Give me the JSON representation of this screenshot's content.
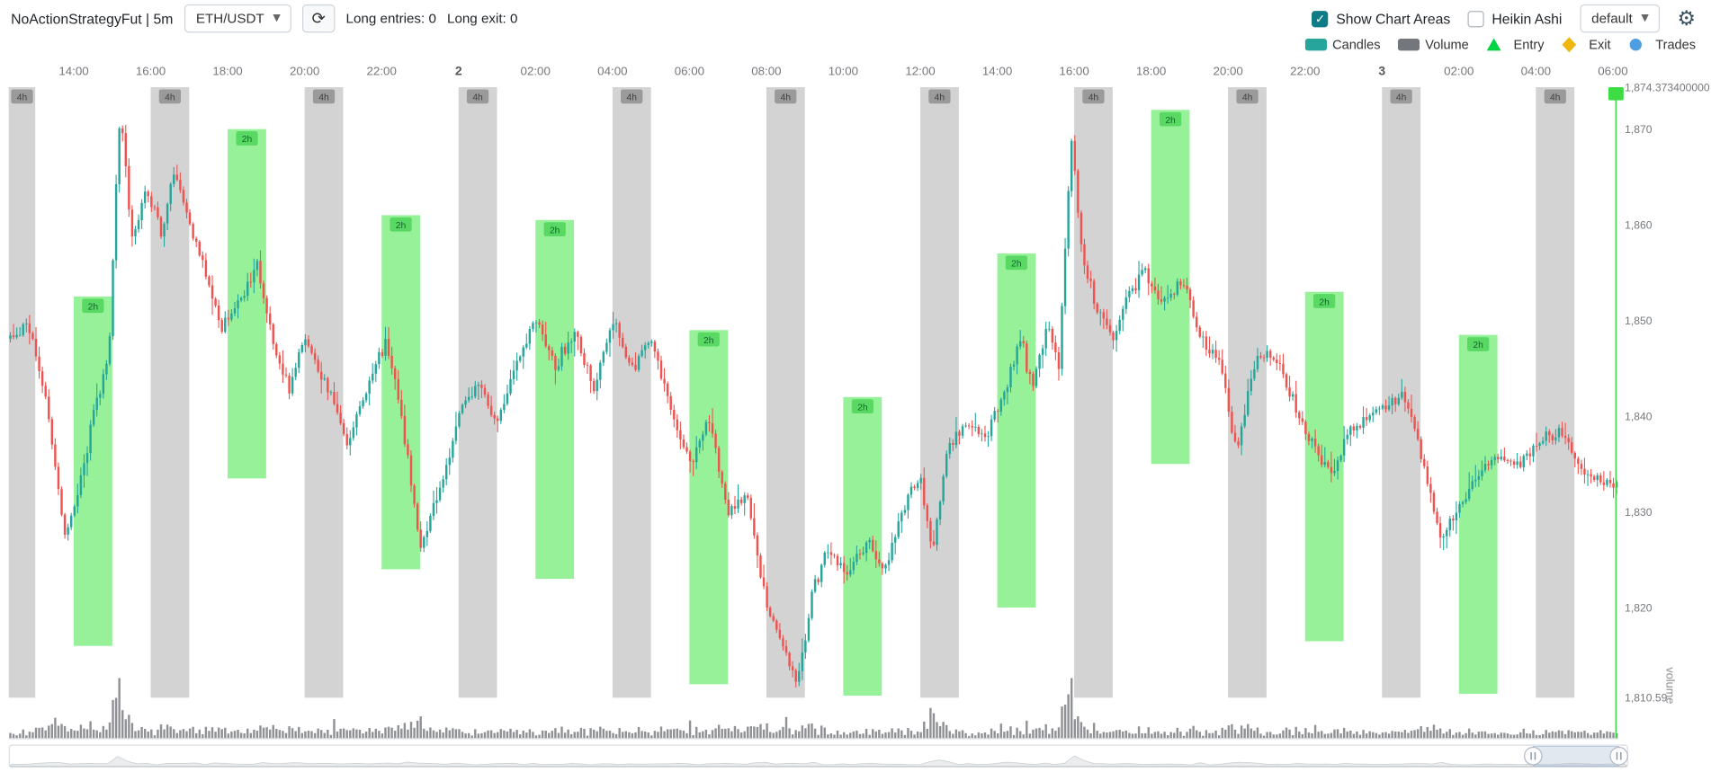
{
  "colors": {
    "accent_teal": "#0e7c86",
    "candle_up": "#26a69a",
    "candle_down": "#ef5350",
    "volume_bar": "#73767a",
    "area_4h": "#a8a8a8",
    "area_4h_chip_bg": "#8f8f8f",
    "area_4h_chip_text": "#3f3f3f",
    "area_2h": "#7dee80",
    "area_2h_chip_bg": "#52d65d",
    "area_2h_chip_text": "#11672a",
    "marker_green": "#3ddc45",
    "axis_text": "#75787c"
  },
  "header": {
    "title": "NoActionStrategyFut | 5m",
    "pair_select": {
      "value": "ETH/USDT"
    },
    "stats": {
      "long_entries": "Long entries: 0",
      "long_exit": "Long exit: 0"
    },
    "show_chart_areas": {
      "label": "Show Chart Areas",
      "checked": true
    },
    "heikin_ashi": {
      "label": "Heikin Ashi",
      "checked": false
    },
    "plot_config_select": {
      "value": "default"
    }
  },
  "legend": {
    "items": [
      {
        "label": "Candles",
        "shape": "rect",
        "color": "#26a69a"
      },
      {
        "label": "Volume",
        "shape": "rect",
        "color": "#73767a"
      },
      {
        "label": "Entry",
        "shape": "triangle",
        "color": "#00d443"
      },
      {
        "label": "Exit",
        "shape": "diamond",
        "color": "#eeb60f"
      },
      {
        "label": "Trades",
        "shape": "circle",
        "color": "#4f9fe0"
      }
    ]
  },
  "chart_data": {
    "type": "candlestick",
    "time_span_hours": 41.83,
    "price_min": 1810.59,
    "price_max": 1874.3734,
    "x_axis_labels": [
      {
        "t": 1.69,
        "label": "14:00"
      },
      {
        "t": 3.69,
        "label": "16:00"
      },
      {
        "t": 5.69,
        "label": "18:00"
      },
      {
        "t": 7.69,
        "label": "20:00"
      },
      {
        "t": 9.69,
        "label": "22:00"
      },
      {
        "t": 11.69,
        "label": "2",
        "bold": true
      },
      {
        "t": 13.69,
        "label": "02:00"
      },
      {
        "t": 15.69,
        "label": "04:00"
      },
      {
        "t": 17.69,
        "label": "06:00"
      },
      {
        "t": 19.69,
        "label": "08:00"
      },
      {
        "t": 21.69,
        "label": "10:00"
      },
      {
        "t": 23.69,
        "label": "12:00"
      },
      {
        "t": 25.69,
        "label": "14:00"
      },
      {
        "t": 27.69,
        "label": "16:00"
      },
      {
        "t": 29.69,
        "label": "18:00"
      },
      {
        "t": 31.69,
        "label": "20:00"
      },
      {
        "t": 33.69,
        "label": "22:00"
      },
      {
        "t": 35.69,
        "label": "3",
        "bold": true
      },
      {
        "t": 37.69,
        "label": "02:00"
      },
      {
        "t": 39.69,
        "label": "04:00"
      },
      {
        "t": 41.69,
        "label": "06:00"
      }
    ],
    "y_axis_labels": [
      {
        "price": 1874.3734,
        "label": "1,874.373400000"
      },
      {
        "price": 1870,
        "label": "1,870"
      },
      {
        "price": 1860,
        "label": "1,860"
      },
      {
        "price": 1850,
        "label": "1,850"
      },
      {
        "price": 1840,
        "label": "1,840"
      },
      {
        "price": 1830,
        "label": "1,830"
      },
      {
        "price": 1820,
        "label": "1,820"
      },
      {
        "price": 1810.59,
        "label": "1,810.59"
      }
    ],
    "volume_axis_name": "volume",
    "areas_4h": {
      "label": "4h",
      "width_hours": 1,
      "starts": [
        -0.31,
        3.69,
        7.69,
        11.69,
        15.69,
        19.69,
        23.69,
        27.69,
        31.69,
        35.69,
        39.69
      ]
    },
    "areas_2h": {
      "label": "2h",
      "width_hours": 1,
      "items": [
        {
          "start": 1.69,
          "min": 1816,
          "max": 1852.5
        },
        {
          "start": 5.69,
          "min": 1833.5,
          "max": 1870
        },
        {
          "start": 9.69,
          "min": 1824,
          "max": 1861
        },
        {
          "start": 13.69,
          "min": 1823,
          "max": 1860.5
        },
        {
          "start": 17.69,
          "min": 1812,
          "max": 1849
        },
        {
          "start": 21.69,
          "min": 1810.8,
          "max": 1842
        },
        {
          "start": 25.69,
          "min": 1820,
          "max": 1857
        },
        {
          "start": 29.69,
          "min": 1835,
          "max": 1872
        },
        {
          "start": 33.69,
          "min": 1816.5,
          "max": 1853
        },
        {
          "start": 37.69,
          "min": 1811,
          "max": 1848.5
        }
      ]
    },
    "price_keypoints": [
      [
        0,
        1848
      ],
      [
        0.5,
        1850
      ],
      [
        1,
        1841
      ],
      [
        1.45,
        1827
      ],
      [
        1.8,
        1832
      ],
      [
        2.2,
        1840
      ],
      [
        2.6,
        1847
      ],
      [
        2.9,
        1873
      ],
      [
        3.2,
        1858
      ],
      [
        3.6,
        1864
      ],
      [
        4,
        1859
      ],
      [
        4.3,
        1866
      ],
      [
        4.7,
        1860
      ],
      [
        5.1,
        1855
      ],
      [
        5.5,
        1849
      ],
      [
        6,
        1852
      ],
      [
        6.45,
        1856
      ],
      [
        6.9,
        1847
      ],
      [
        7.3,
        1843
      ],
      [
        7.7,
        1848
      ],
      [
        8.3,
        1843
      ],
      [
        8.8,
        1837
      ],
      [
        9.3,
        1843
      ],
      [
        9.8,
        1848
      ],
      [
        10.2,
        1840
      ],
      [
        10.7,
        1826
      ],
      [
        11.2,
        1832
      ],
      [
        11.7,
        1840
      ],
      [
        12.2,
        1844
      ],
      [
        12.7,
        1839
      ],
      [
        13.2,
        1846
      ],
      [
        13.7,
        1850
      ],
      [
        14.2,
        1845
      ],
      [
        14.7,
        1849
      ],
      [
        15.2,
        1843
      ],
      [
        15.7,
        1850
      ],
      [
        16.2,
        1845
      ],
      [
        16.7,
        1848
      ],
      [
        17.2,
        1841
      ],
      [
        17.7,
        1835
      ],
      [
        18.2,
        1840
      ],
      [
        18.7,
        1830
      ],
      [
        19.2,
        1832
      ],
      [
        19.7,
        1820
      ],
      [
        20.2,
        1815
      ],
      [
        20.5,
        1812
      ],
      [
        20.9,
        1822
      ],
      [
        21.3,
        1826
      ],
      [
        21.8,
        1823
      ],
      [
        22.3,
        1827
      ],
      [
        22.8,
        1824
      ],
      [
        23.3,
        1831
      ],
      [
        23.7,
        1834
      ],
      [
        24,
        1825
      ],
      [
        24.4,
        1837
      ],
      [
        24.9,
        1839
      ],
      [
        25.4,
        1838
      ],
      [
        25.9,
        1843
      ],
      [
        26.3,
        1848
      ],
      [
        26.6,
        1843
      ],
      [
        27,
        1850
      ],
      [
        27.3,
        1845
      ],
      [
        27.6,
        1869
      ],
      [
        27.9,
        1857
      ],
      [
        28.3,
        1851
      ],
      [
        28.7,
        1848
      ],
      [
        29.1,
        1853
      ],
      [
        29.5,
        1855
      ],
      [
        30,
        1852
      ],
      [
        30.5,
        1854
      ],
      [
        31,
        1848
      ],
      [
        31.5,
        1846
      ],
      [
        31.9,
        1836
      ],
      [
        32.4,
        1846
      ],
      [
        33,
        1846
      ],
      [
        33.5,
        1840
      ],
      [
        34,
        1836
      ],
      [
        34.4,
        1834
      ],
      [
        34.8,
        1838
      ],
      [
        35.3,
        1840
      ],
      [
        35.8,
        1841
      ],
      [
        36.2,
        1842
      ],
      [
        36.6,
        1838
      ],
      [
        37.2,
        1827
      ],
      [
        37.6,
        1830
      ],
      [
        38.2,
        1834
      ],
      [
        38.7,
        1836
      ],
      [
        39.2,
        1835
      ],
      [
        39.7,
        1837
      ],
      [
        40.1,
        1838
      ],
      [
        40.5,
        1838
      ],
      [
        40.9,
        1834
      ],
      [
        41.4,
        1833
      ],
      [
        41.83,
        1833
      ]
    ],
    "volume_spikes": [
      [
        2.9,
        1.0
      ],
      [
        10.7,
        0.2
      ],
      [
        20.2,
        0.25
      ],
      [
        24,
        0.5
      ],
      [
        27.6,
        0.7
      ]
    ],
    "marker_t": 41.77
  },
  "slider": {
    "window_start": 0.942,
    "window_end": 0.995
  }
}
